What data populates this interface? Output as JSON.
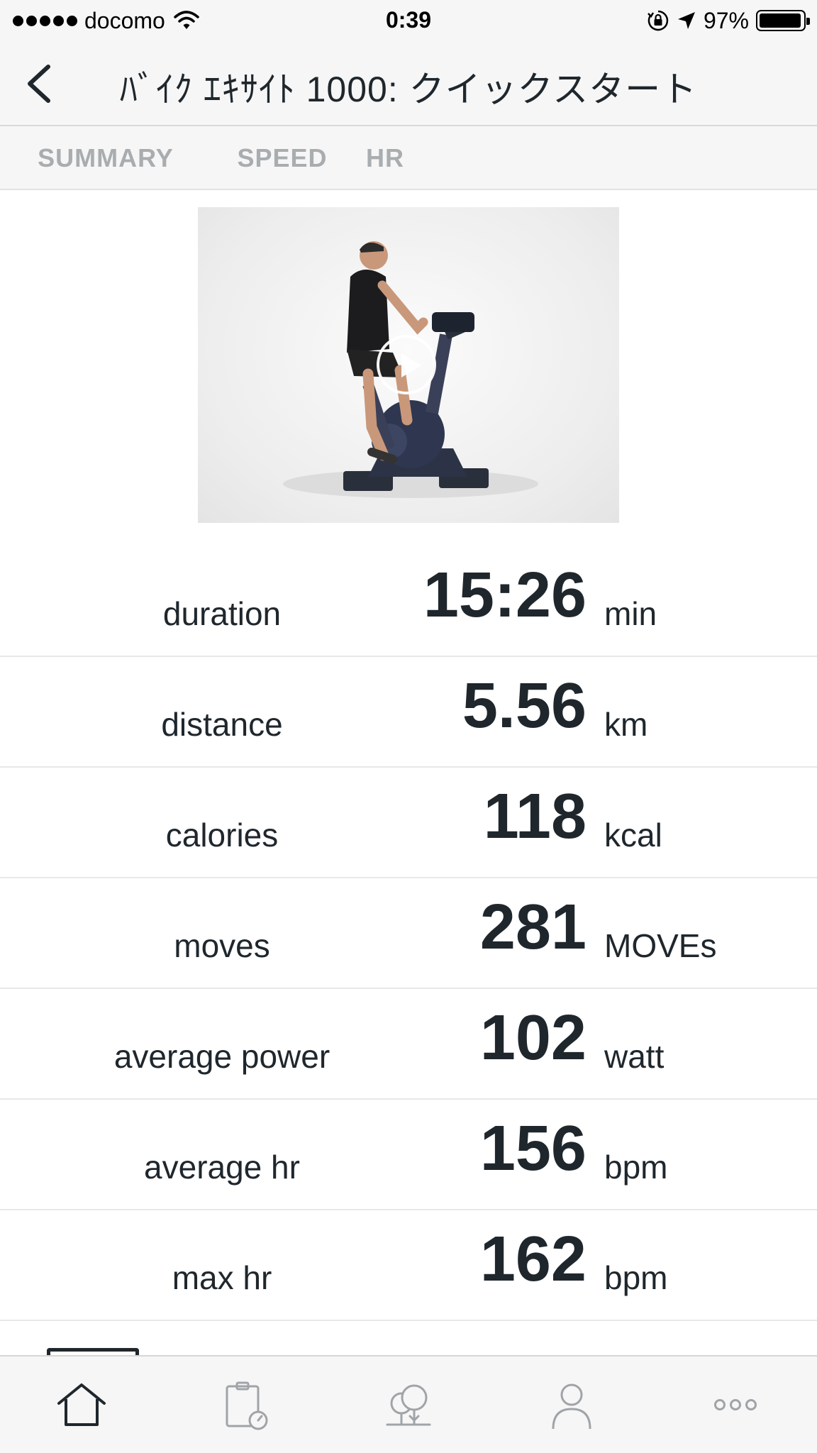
{
  "status_bar": {
    "carrier": "docomo",
    "time": "0:39",
    "battery_percent": "97%",
    "battery_level": 0.97
  },
  "header": {
    "title": "ﾊﾞｲｸ ｴｷｻｲﾄ 1000: クイックスタート"
  },
  "tabs": [
    {
      "label": "SUMMARY",
      "active": true
    },
    {
      "label": "SPEED",
      "active": false
    },
    {
      "label": "HR",
      "active": false
    }
  ],
  "stats": [
    {
      "label": "duration",
      "value": "15:26",
      "unit": "min"
    },
    {
      "label": "distance",
      "value": "5.56",
      "unit": "km"
    },
    {
      "label": "calories",
      "value": "118",
      "unit": "kcal"
    },
    {
      "label": "moves",
      "value": "281",
      "unit": "MOVEs"
    },
    {
      "label": "average power",
      "value": "102",
      "unit": "watt"
    },
    {
      "label": "average hr",
      "value": "156",
      "unit": "bpm"
    },
    {
      "label": "max hr",
      "value": "162",
      "unit": "bpm"
    }
  ],
  "tab_bar": {
    "items": [
      "home-icon",
      "workout-log-icon",
      "trees-icon",
      "profile-icon",
      "more-icon"
    ],
    "active": "home-icon"
  },
  "colors": {
    "text": "#1f272d",
    "inactive_tab": "#a9adb0",
    "bar_background": "#f6f6f6"
  }
}
